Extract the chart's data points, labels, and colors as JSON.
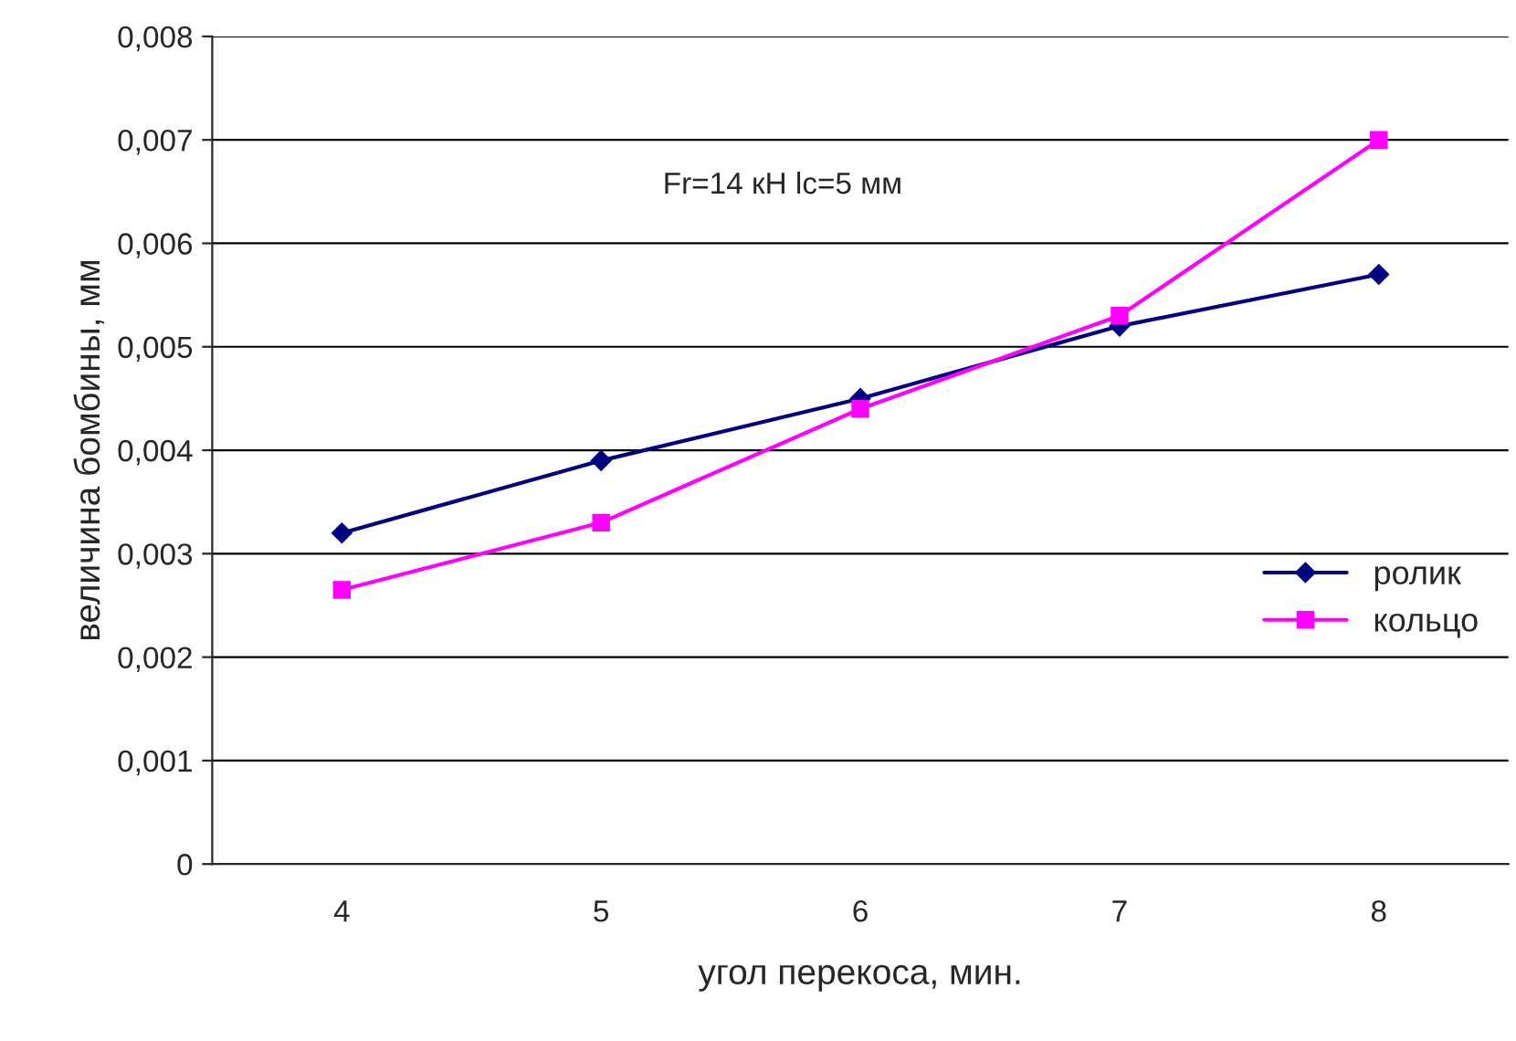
{
  "chart_data": {
    "type": "line",
    "xlabel": "угол перекоса, мин.",
    "ylabel": "величина бомбины, мм",
    "annotations": [
      "Fr=14 кН lc=5 мм"
    ],
    "categories": [
      "4",
      "5",
      "6",
      "7",
      "8"
    ],
    "series": [
      {
        "name": "ролик",
        "color": "#000080",
        "marker": "diamond",
        "values": [
          0.0032,
          0.0039,
          0.0045,
          0.0052,
          0.0057
        ]
      },
      {
        "name": "кольцо",
        "color": "#ff00ff",
        "marker": "square",
        "values": [
          0.00265,
          0.0033,
          0.0044,
          0.0053,
          0.007
        ]
      }
    ],
    "ylim": [
      0,
      0.008
    ],
    "yticks": [
      {
        "value": 0,
        "label": "0"
      },
      {
        "value": 0.001,
        "label": "0,001"
      },
      {
        "value": 0.002,
        "label": "0,002"
      },
      {
        "value": 0.003,
        "label": "0,003"
      },
      {
        "value": 0.004,
        "label": "0,004"
      },
      {
        "value": 0.005,
        "label": "0,005"
      },
      {
        "value": 0.006,
        "label": "0,006"
      },
      {
        "value": 0.007,
        "label": "0,007"
      },
      {
        "value": 0.008,
        "label": "0,008"
      }
    ],
    "grid": "y",
    "legend": "right",
    "line_style": "solid"
  }
}
